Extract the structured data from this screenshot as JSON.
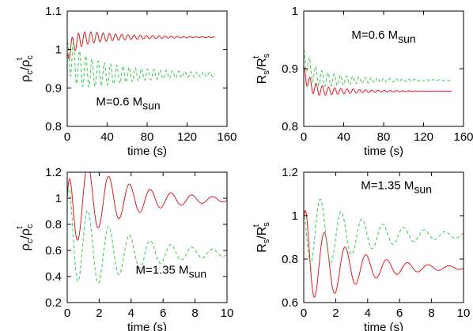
{
  "chart_data": [
    {
      "type": "line",
      "panel": "top-left",
      "xlabel": "time (s)",
      "ylabel": {
        "main": "ρ",
        "main_sub": "c",
        "sep": "/ρ",
        "den_sub": "c",
        "den_sup": "t"
      },
      "annotation": {
        "text": "M=0.6 M",
        "sub": "sun"
      },
      "xlim": [
        0,
        160
      ],
      "ylim": [
        0.8,
        1.1
      ],
      "xticks": [
        "0",
        "40",
        "80",
        "120",
        "160"
      ],
      "yticks": [
        "0.8",
        "0.9",
        "1",
        "1.1"
      ],
      "x_tick_values": [
        0,
        40,
        80,
        120,
        160
      ],
      "y_tick_values": [
        0.8,
        0.9,
        1.0,
        1.1
      ],
      "t_end": 148,
      "series": [
        {
          "color": "#e41a1c",
          "dash": "solid",
          "start": 0.985,
          "asymptote": 1.032,
          "amplitude": 0.025,
          "period": 6.2,
          "tau": 45,
          "phase": 1.2
        },
        {
          "color": "#2ecc40",
          "dash": "4,3",
          "start": 1.0,
          "asymptote": 0.935,
          "amplitude": 0.055,
          "period": 6.2,
          "tau": 60,
          "phase": 0.0
        }
      ]
    },
    {
      "type": "line",
      "panel": "top-right",
      "xlabel": "time (s)",
      "ylabel": {
        "main": "R",
        "main_sub": "s",
        "sep": "/R",
        "den_sub": "s",
        "den_sup": "t"
      },
      "annotation": {
        "text": "M=0.6 M",
        "sub": "sun"
      },
      "xlim": [
        0,
        160
      ],
      "ylim": [
        0.8,
        1.0
      ],
      "xticks": [
        "0",
        "40",
        "80",
        "120",
        "160"
      ],
      "yticks": [
        "0.8",
        "0.9",
        "1"
      ],
      "x_tick_values": [
        0,
        40,
        80,
        120,
        160
      ],
      "y_tick_values": [
        0.8,
        0.9,
        1.0
      ],
      "t_end": 148,
      "series": [
        {
          "color": "#e41a1c",
          "dash": "solid",
          "start": 0.9,
          "asymptote": 0.861,
          "amplitude": 0.014,
          "period": 6.2,
          "tau": 35,
          "phase": 0.0
        },
        {
          "color": "#2ecc40",
          "dash": "4,3",
          "start": 0.93,
          "asymptote": 0.88,
          "amplitude": 0.02,
          "period": 6.2,
          "tau": 45,
          "phase": 0.5
        }
      ]
    },
    {
      "type": "line",
      "panel": "bottom-left",
      "xlabel": "time (s)",
      "ylabel": {
        "main": "ρ",
        "main_sub": "c",
        "sep": "/ρ",
        "den_sub": "c",
        "den_sup": "t"
      },
      "annotation": {
        "text": "M=1.35 M",
        "sub": "sun"
      },
      "xlim": [
        0,
        10
      ],
      "ylim": [
        0.2,
        1.2
      ],
      "xticks": [
        "0",
        "2",
        "4",
        "6",
        "8",
        "10"
      ],
      "yticks": [
        "0.2",
        "0.4",
        "0.6",
        "0.8",
        "1",
        "1.2"
      ],
      "x_tick_values": [
        0,
        2,
        4,
        6,
        8,
        10
      ],
      "y_tick_values": [
        0.2,
        0.4,
        0.6,
        0.8,
        1.0,
        1.2
      ],
      "t_end": 10,
      "series": [
        {
          "color": "#e41a1c",
          "dash": "solid",
          "start": 1.0,
          "asymptote": 0.99,
          "amplitude": 0.4,
          "period": 1.3,
          "tau": 3.2,
          "phase": 0.0
        },
        {
          "color": "#2ecc40",
          "dash": "4,3",
          "start": 1.0,
          "asymptote": 0.58,
          "amplitude": 0.42,
          "period": 1.3,
          "tau": 3.5,
          "phase": 0.0
        }
      ]
    },
    {
      "type": "line",
      "panel": "bottom-right",
      "xlabel": "time (s)",
      "ylabel": {
        "main": "R",
        "main_sub": "s",
        "sep": "/R",
        "den_sub": "s",
        "den_sup": "t"
      },
      "annotation": {
        "text": "M=1.35 M",
        "sub": "sun"
      },
      "xlim": [
        0,
        10
      ],
      "ylim": [
        0.6,
        1.2
      ],
      "xticks": [
        "0",
        "2",
        "4",
        "6",
        "8",
        "10"
      ],
      "yticks": [
        "0.6",
        "0.8",
        "1",
        "1.2"
      ],
      "x_tick_values": [
        0,
        2,
        4,
        6,
        8,
        10
      ],
      "y_tick_values": [
        0.6,
        0.8,
        1.0,
        1.2
      ],
      "t_end": 10,
      "series": [
        {
          "color": "#e41a1c",
          "dash": "solid",
          "start": 0.99,
          "asymptote": 0.76,
          "amplitude": 0.24,
          "period": 1.3,
          "tau": 2.8,
          "phase": 0.0
        },
        {
          "color": "#2ecc40",
          "dash": "4,3",
          "start": 0.99,
          "asymptote": 0.91,
          "amplitude": 0.21,
          "period": 1.3,
          "tau": 3.5,
          "phase": 1.2
        }
      ]
    }
  ]
}
